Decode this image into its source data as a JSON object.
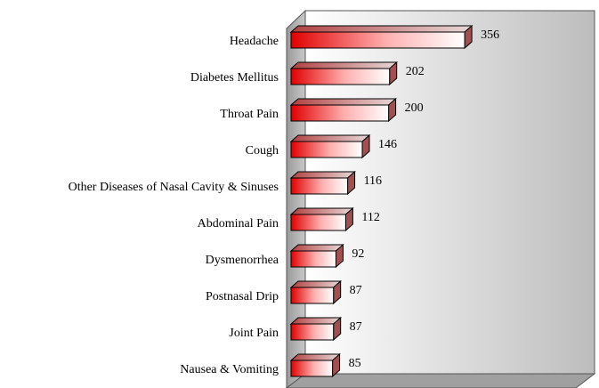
{
  "chart_data": {
    "type": "bar",
    "orientation": "horizontal",
    "color": "#e00000",
    "categories": [
      "Headache",
      "Diabetes Mellitus",
      "Throat Pain",
      "Cough",
      "Other Diseases of Nasal Cavity & Sinuses",
      "Abdominal Pain",
      "Dysmenorrhea",
      "Postnasal Drip",
      "Joint Pain",
      "Nausea & Vomiting"
    ],
    "values": [
      356,
      202,
      200,
      146,
      116,
      112,
      92,
      87,
      87,
      85
    ]
  }
}
